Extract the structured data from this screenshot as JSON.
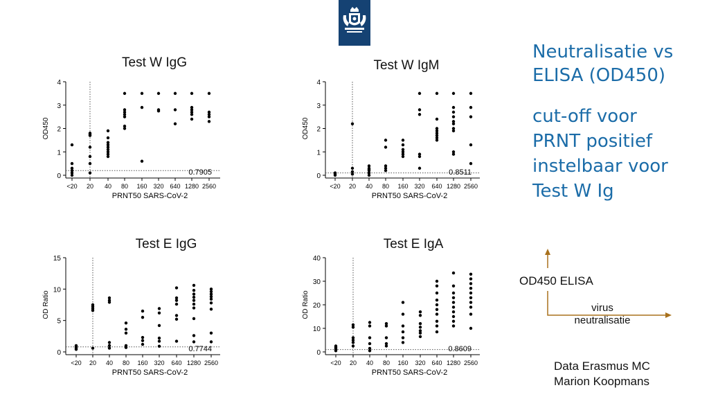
{
  "colors": {
    "title_blue": "#1b6ca8",
    "logo_bg": "#154273",
    "arrow_brown": "#a8711c",
    "point": "#000000"
  },
  "logo": {
    "icon": "royal-coat-of-arms-icon"
  },
  "side": {
    "title_lines": [
      "Neutralisatie vs",
      "ELISA (OD450)"
    ],
    "subtitle_lines": [
      "cut-off voor",
      "PRNT positief",
      "instelbaar voor",
      "Test W Ig"
    ]
  },
  "arrows": {
    "y_label": "OD450 ELISA",
    "x_label_lines": [
      "virus",
      "neutralisatie"
    ]
  },
  "credit": {
    "lines": [
      "Data Erasmus MC",
      "Marion Koopmans"
    ]
  },
  "chart_data": [
    {
      "type": "scatter",
      "title": "Test W IgG",
      "xlabel": "PRNT50 SARS-CoV-2",
      "ylabel": "OD450",
      "categories": [
        "<20",
        "20",
        "40",
        "80",
        "160",
        "320",
        "640",
        "1280",
        "2560"
      ],
      "ylim": [
        0,
        4
      ],
      "yticks": [
        "0",
        "1",
        "2",
        "3",
        "4"
      ],
      "cutoff_label": "0.7905",
      "cutoff_y": 0.2,
      "threshold_category": "20",
      "points": [
        [
          0,
          1.3
        ],
        [
          0,
          0.5
        ],
        [
          0,
          0.3
        ],
        [
          0,
          0.2
        ],
        [
          0,
          0.1
        ],
        [
          0,
          0.0
        ],
        [
          1,
          1.8
        ],
        [
          1,
          1.75
        ],
        [
          1,
          1.7
        ],
        [
          1,
          1.2
        ],
        [
          1,
          0.8
        ],
        [
          1,
          0.5
        ],
        [
          1,
          0.1
        ],
        [
          2,
          1.9
        ],
        [
          2,
          1.6
        ],
        [
          2,
          1.4
        ],
        [
          2,
          1.3
        ],
        [
          2,
          1.2
        ],
        [
          2,
          1.1
        ],
        [
          2,
          1.0
        ],
        [
          2,
          0.9
        ],
        [
          2,
          0.8
        ],
        [
          3,
          3.5
        ],
        [
          3,
          2.8
        ],
        [
          3,
          2.7
        ],
        [
          3,
          2.6
        ],
        [
          3,
          2.5
        ],
        [
          3,
          2.1
        ],
        [
          3,
          2.0
        ],
        [
          4,
          3.5
        ],
        [
          4,
          2.9
        ],
        [
          4,
          0.6
        ],
        [
          5,
          3.5
        ],
        [
          5,
          2.8
        ],
        [
          5,
          2.75
        ],
        [
          6,
          3.5
        ],
        [
          6,
          2.8
        ],
        [
          6,
          2.2
        ],
        [
          7,
          3.5
        ],
        [
          7,
          2.9
        ],
        [
          7,
          2.8
        ],
        [
          7,
          2.7
        ],
        [
          7,
          2.6
        ],
        [
          7,
          2.4
        ],
        [
          8,
          3.5
        ],
        [
          8,
          2.7
        ],
        [
          8,
          2.6
        ],
        [
          8,
          2.5
        ],
        [
          8,
          2.3
        ]
      ]
    },
    {
      "type": "scatter",
      "title": "Test W IgM",
      "xlabel": "PRNT50 SARS-CoV-2",
      "ylabel": "OD450",
      "categories": [
        "<20",
        "20",
        "40",
        "80",
        "160",
        "320",
        "640",
        "1280",
        "2560"
      ],
      "ylim": [
        0,
        4
      ],
      "yticks": [
        "0",
        "1",
        "2",
        "3",
        "4"
      ],
      "cutoff_label": "0.8511",
      "cutoff_y": 0.1,
      "threshold_category": "20",
      "points": [
        [
          0,
          0.1
        ],
        [
          0,
          0.05
        ],
        [
          0,
          0.0
        ],
        [
          1,
          2.2
        ],
        [
          1,
          0.3
        ],
        [
          1,
          0.15
        ],
        [
          1,
          0.05
        ],
        [
          2,
          0.4
        ],
        [
          2,
          0.3
        ],
        [
          2,
          0.25
        ],
        [
          2,
          0.2
        ],
        [
          2,
          0.1
        ],
        [
          2,
          0.0
        ],
        [
          3,
          1.5
        ],
        [
          3,
          1.2
        ],
        [
          3,
          0.4
        ],
        [
          3,
          0.3
        ],
        [
          3,
          0.2
        ],
        [
          4,
          1.5
        ],
        [
          4,
          1.3
        ],
        [
          4,
          1.1
        ],
        [
          4,
          1.0
        ],
        [
          4,
          0.9
        ],
        [
          4,
          0.8
        ],
        [
          5,
          3.5
        ],
        [
          5,
          2.8
        ],
        [
          5,
          2.6
        ],
        [
          5,
          0.9
        ],
        [
          5,
          0.8
        ],
        [
          5,
          0.3
        ],
        [
          6,
          3.5
        ],
        [
          6,
          2.4
        ],
        [
          6,
          2.0
        ],
        [
          6,
          1.9
        ],
        [
          6,
          1.8
        ],
        [
          6,
          1.7
        ],
        [
          6,
          1.6
        ],
        [
          6,
          1.5
        ],
        [
          7,
          3.5
        ],
        [
          7,
          2.9
        ],
        [
          7,
          2.7
        ],
        [
          7,
          2.5
        ],
        [
          7,
          2.3
        ],
        [
          7,
          2.2
        ],
        [
          7,
          2.0
        ],
        [
          7,
          1.9
        ],
        [
          7,
          1.0
        ],
        [
          7,
          0.9
        ],
        [
          8,
          3.5
        ],
        [
          8,
          2.9
        ],
        [
          8,
          2.5
        ],
        [
          8,
          1.3
        ],
        [
          8,
          0.5
        ]
      ]
    },
    {
      "type": "scatter",
      "title": "Test E IgG",
      "xlabel": "PRNT50 SARS-CoV-2",
      "ylabel": "OD Ratio",
      "categories": [
        "<20",
        "20",
        "40",
        "80",
        "160",
        "320",
        "640",
        "1280",
        "2560"
      ],
      "ylim": [
        0,
        15
      ],
      "yticks": [
        "0",
        "5",
        "10",
        "15"
      ],
      "cutoff_label": "0.7744",
      "cutoff_y": 0.8,
      "threshold_category": "20",
      "points": [
        [
          0,
          1.0
        ],
        [
          0,
          0.8
        ],
        [
          0,
          0.6
        ],
        [
          0,
          0.4
        ],
        [
          1,
          7.5
        ],
        [
          1,
          7.2
        ],
        [
          1,
          6.9
        ],
        [
          1,
          6.6
        ],
        [
          1,
          0.6
        ],
        [
          2,
          8.6
        ],
        [
          2,
          8.2
        ],
        [
          2,
          7.9
        ],
        [
          2,
          1.5
        ],
        [
          2,
          1.0
        ],
        [
          2,
          0.6
        ],
        [
          3,
          4.6
        ],
        [
          3,
          3.6
        ],
        [
          3,
          3.0
        ],
        [
          3,
          1.0
        ],
        [
          3,
          0.7
        ],
        [
          4,
          6.5
        ],
        [
          4,
          5.5
        ],
        [
          4,
          2.3
        ],
        [
          4,
          1.8
        ],
        [
          4,
          1.2
        ],
        [
          5,
          6.9
        ],
        [
          5,
          6.2
        ],
        [
          5,
          4.2
        ],
        [
          5,
          2.2
        ],
        [
          5,
          1.7
        ],
        [
          5,
          0.9
        ],
        [
          6,
          10.2
        ],
        [
          6,
          8.6
        ],
        [
          6,
          8.2
        ],
        [
          6,
          7.6
        ],
        [
          6,
          5.8
        ],
        [
          6,
          5.2
        ],
        [
          6,
          1.7
        ],
        [
          7,
          10.6
        ],
        [
          7,
          9.8
        ],
        [
          7,
          9.2
        ],
        [
          7,
          8.7
        ],
        [
          7,
          8.2
        ],
        [
          7,
          7.6
        ],
        [
          7,
          7.0
        ],
        [
          7,
          5.3
        ],
        [
          7,
          2.6
        ],
        [
          7,
          1.6
        ],
        [
          8,
          10.0
        ],
        [
          8,
          9.6
        ],
        [
          8,
          9.2
        ],
        [
          8,
          8.8
        ],
        [
          8,
          8.4
        ],
        [
          8,
          7.8
        ],
        [
          8,
          6.8
        ],
        [
          8,
          3.0
        ],
        [
          8,
          1.6
        ]
      ]
    },
    {
      "type": "scatter",
      "title": "Test E IgA",
      "xlabel": "PRNT50 SARS-CoV-2",
      "ylabel": "OD Ratio",
      "categories": [
        "<20",
        "20",
        "40",
        "80",
        "160",
        "320",
        "640",
        "1280",
        "2560"
      ],
      "ylim": [
        0,
        40
      ],
      "yticks": [
        "0",
        "10",
        "20",
        "30",
        "40"
      ],
      "cutoff_label": "0.8609",
      "cutoff_y": 1.0,
      "threshold_category": "20",
      "points": [
        [
          0,
          2.5
        ],
        [
          0,
          2.0
        ],
        [
          0,
          1.5
        ],
        [
          0,
          1.0
        ],
        [
          0,
          0.5
        ],
        [
          1,
          11.5
        ],
        [
          1,
          10.5
        ],
        [
          1,
          6.0
        ],
        [
          1,
          5.0
        ],
        [
          1,
          4.0
        ],
        [
          1,
          2.5
        ],
        [
          2,
          12.5
        ],
        [
          2,
          11.0
        ],
        [
          2,
          6.0
        ],
        [
          2,
          3.5
        ],
        [
          2,
          1.5
        ],
        [
          2,
          0.5
        ],
        [
          3,
          12.0
        ],
        [
          3,
          11.0
        ],
        [
          3,
          6.0
        ],
        [
          3,
          3.5
        ],
        [
          3,
          2.5
        ],
        [
          4,
          21.0
        ],
        [
          4,
          16.0
        ],
        [
          4,
          11.0
        ],
        [
          4,
          8.5
        ],
        [
          4,
          6.0
        ],
        [
          4,
          4.0
        ],
        [
          5,
          17.0
        ],
        [
          5,
          15.5
        ],
        [
          5,
          12.0
        ],
        [
          5,
          10.5
        ],
        [
          5,
          9.0
        ],
        [
          5,
          8.0
        ],
        [
          5,
          6.5
        ],
        [
          6,
          30.0
        ],
        [
          6,
          28.0
        ],
        [
          6,
          25.0
        ],
        [
          6,
          22.0
        ],
        [
          6,
          20.0
        ],
        [
          6,
          18.0
        ],
        [
          6,
          16.0
        ],
        [
          6,
          13.0
        ],
        [
          6,
          11.0
        ],
        [
          6,
          8.5
        ],
        [
          7,
          33.5
        ],
        [
          7,
          28.0
        ],
        [
          7,
          25.0
        ],
        [
          7,
          23.0
        ],
        [
          7,
          21.0
        ],
        [
          7,
          19.0
        ],
        [
          7,
          17.0
        ],
        [
          7,
          15.0
        ],
        [
          7,
          13.0
        ],
        [
          7,
          11.0
        ],
        [
          8,
          33.0
        ],
        [
          8,
          31.0
        ],
        [
          8,
          29.0
        ],
        [
          8,
          27.0
        ],
        [
          8,
          25.0
        ],
        [
          8,
          23.0
        ],
        [
          8,
          21.0
        ],
        [
          8,
          19.0
        ],
        [
          8,
          16.0
        ],
        [
          8,
          10.0
        ]
      ]
    }
  ]
}
